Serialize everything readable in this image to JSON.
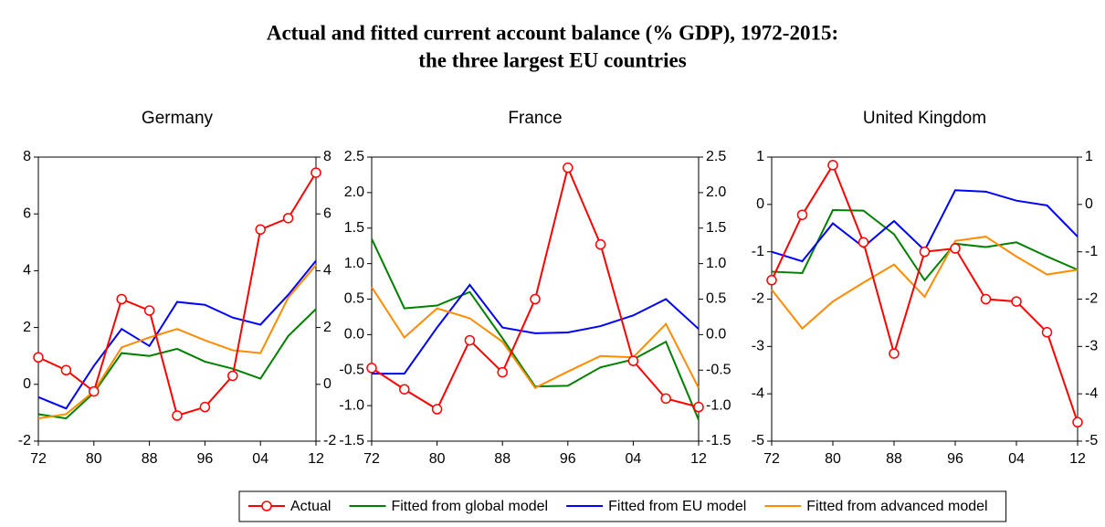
{
  "title": [
    "Actual and fitted current account balance (% GDP), 1972-2015:",
    "the three largest EU countries"
  ],
  "chart_data": [
    {
      "type": "line",
      "title": "Germany",
      "x": [
        1972,
        1976,
        1980,
        1984,
        1988,
        1992,
        1996,
        2000,
        2004,
        2008,
        2012
      ],
      "xlim": [
        1972,
        2012
      ],
      "xticks": [
        {
          "value": 1972,
          "label": "72"
        },
        {
          "value": 1980,
          "label": "80"
        },
        {
          "value": 1988,
          "label": "88"
        },
        {
          "value": 1996,
          "label": "96"
        },
        {
          "value": 2004,
          "label": "04"
        },
        {
          "value": 2012,
          "label": "12"
        }
      ],
      "ylim": [
        -2,
        8
      ],
      "yticks": [
        -2,
        0,
        2,
        4,
        6,
        8
      ],
      "series": [
        {
          "name": "Actual",
          "color": "#ff0000",
          "marker": "circle",
          "values": [
            0.95,
            0.5,
            -0.25,
            3.0,
            2.6,
            -1.1,
            -0.8,
            0.3,
            5.45,
            5.85,
            7.45
          ]
        },
        {
          "name": "Fitted from global model",
          "color": "#008000",
          "values": [
            -1.05,
            -1.2,
            -0.3,
            1.1,
            1.0,
            1.25,
            0.8,
            0.55,
            0.2,
            1.7,
            2.65
          ]
        },
        {
          "name": "Fitted from EU model",
          "color": "#0000ff",
          "values": [
            -0.45,
            -0.85,
            0.65,
            1.95,
            1.35,
            2.9,
            2.8,
            2.35,
            2.1,
            3.15,
            4.35
          ]
        },
        {
          "name": "Fitted from advanced model",
          "color": "#ff8c00",
          "values": [
            -1.2,
            -1.05,
            -0.25,
            1.3,
            1.65,
            1.95,
            1.55,
            1.2,
            1.1,
            3.05,
            4.2
          ]
        }
      ]
    },
    {
      "type": "line",
      "title": "France",
      "x": [
        1972,
        1976,
        1980,
        1984,
        1988,
        1992,
        1996,
        2000,
        2004,
        2008,
        2012
      ],
      "xlim": [
        1972,
        2012
      ],
      "xticks": [
        {
          "value": 1972,
          "label": "72"
        },
        {
          "value": 1980,
          "label": "80"
        },
        {
          "value": 1988,
          "label": "88"
        },
        {
          "value": 1996,
          "label": "96"
        },
        {
          "value": 2004,
          "label": "04"
        },
        {
          "value": 2012,
          "label": "12"
        }
      ],
      "ylim": [
        -1.5,
        2.5
      ],
      "yticks": [
        -1.5,
        {
          "value": -1,
          "label": "-1.0"
        },
        -0.5,
        {
          "value": 0,
          "label": "0.0"
        },
        0.5,
        {
          "value": 1,
          "label": "1.0"
        },
        1.5,
        {
          "value": 2,
          "label": "2.0"
        },
        2.5
      ],
      "series": [
        {
          "name": "Actual",
          "color": "#ff0000",
          "marker": "circle",
          "values": [
            -0.47,
            -0.77,
            -1.05,
            -0.08,
            -0.53,
            0.5,
            2.35,
            1.27,
            -0.37,
            -0.9,
            -1.02
          ]
        },
        {
          "name": "Fitted from global model",
          "color": "#008000",
          "values": [
            1.35,
            0.37,
            0.41,
            0.6,
            -0.05,
            -0.73,
            -0.72,
            -0.46,
            -0.35,
            -0.1,
            -1.2
          ]
        },
        {
          "name": "Fitted from EU model",
          "color": "#0000ff",
          "values": [
            -0.55,
            -0.55,
            0.1,
            0.7,
            0.1,
            0.02,
            0.03,
            0.12,
            0.27,
            0.5,
            0.08
          ]
        },
        {
          "name": "Fitted from advanced model",
          "color": "#ff8c00",
          "values": [
            0.67,
            -0.04,
            0.37,
            0.23,
            -0.1,
            -0.75,
            -0.52,
            -0.3,
            -0.32,
            0.15,
            -0.75
          ]
        }
      ]
    },
    {
      "type": "line",
      "title": "United Kingdom",
      "x": [
        1972,
        1976,
        1980,
        1984,
        1988,
        1992,
        1996,
        2000,
        2004,
        2008,
        2012
      ],
      "xlim": [
        1972,
        2012
      ],
      "xticks": [
        {
          "value": 1972,
          "label": "72"
        },
        {
          "value": 1980,
          "label": "80"
        },
        {
          "value": 1988,
          "label": "88"
        },
        {
          "value": 1996,
          "label": "96"
        },
        {
          "value": 2004,
          "label": "04"
        },
        {
          "value": 2012,
          "label": "12"
        }
      ],
      "ylim": [
        -5,
        1
      ],
      "yticks": [
        -5,
        -4,
        -3,
        -2,
        -1,
        0,
        1
      ],
      "series": [
        {
          "name": "Actual",
          "color": "#ff0000",
          "marker": "circle",
          "values": [
            -1.6,
            -0.22,
            0.83,
            -0.8,
            -3.15,
            -1.0,
            -0.93,
            -2.0,
            -2.05,
            -2.7,
            -4.6
          ]
        },
        {
          "name": "Fitted from global model",
          "color": "#008000",
          "values": [
            -1.42,
            -1.45,
            -0.12,
            -0.13,
            -0.63,
            -1.6,
            -0.83,
            -0.9,
            -0.8,
            -1.1,
            -1.38
          ]
        },
        {
          "name": "Fitted from EU model",
          "color": "#0000ff",
          "values": [
            -1.0,
            -1.2,
            -0.4,
            -0.9,
            -0.35,
            -0.97,
            0.3,
            0.27,
            0.08,
            -0.02,
            -0.68
          ]
        },
        {
          "name": "Fitted from advanced model",
          "color": "#ff8c00",
          "values": [
            -1.8,
            -2.62,
            -2.05,
            -1.65,
            -1.27,
            -1.95,
            -0.77,
            -0.68,
            -1.1,
            -1.48,
            -1.38
          ]
        }
      ]
    }
  ]
}
